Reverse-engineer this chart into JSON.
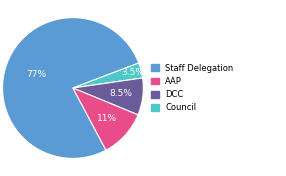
{
  "labels": [
    "Staff Delegation",
    "Council",
    "DCC",
    "AAP"
  ],
  "values": [
    77,
    3.5,
    8.5,
    11
  ],
  "colors": [
    "#5b9bd5",
    "#4ec8c8",
    "#6b5b9b",
    "#e84d8a"
  ],
  "pct_labels": [
    "77%",
    "3.5%",
    "8.5%",
    "11%"
  ],
  "legend_labels": [
    "Staff Delegation",
    "AAP",
    "DCC",
    "Council"
  ],
  "legend_colors": [
    "#5b9bd5",
    "#e84d8a",
    "#6b5b9b",
    "#4ec8c8"
  ],
  "background_color": "#ffffff",
  "label_color": "#ffffff",
  "label_fontsize": 6.5,
  "legend_fontsize": 6,
  "startangle": -62
}
